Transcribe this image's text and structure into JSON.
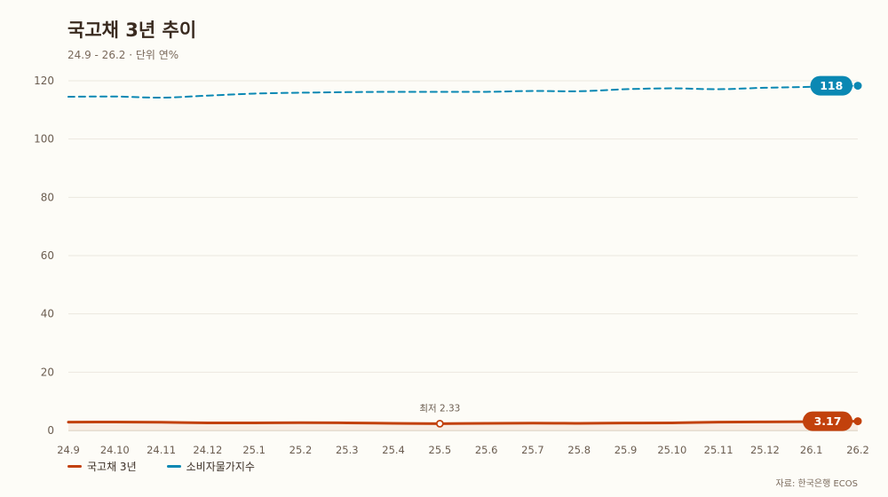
{
  "title": "국고채 3년 추이",
  "subtitle": "24.9 - 26.2 · 단위 연%",
  "source": "자료: 한국은행 ECOS",
  "colors": {
    "background": "#fdfcf7",
    "gridline": "#ece8df",
    "axis_text": "#6b5d50",
    "bond": "#c2410c",
    "cpi": "#0a88b3"
  },
  "chart_data": {
    "type": "line",
    "x": [
      "24.9",
      "24.10",
      "24.11",
      "24.12",
      "25.1",
      "25.2",
      "25.3",
      "25.4",
      "25.5",
      "25.6",
      "25.7",
      "25.8",
      "25.9",
      "25.10",
      "25.11",
      "25.12",
      "26.1",
      "26.2"
    ],
    "ylim": [
      0,
      120
    ],
    "yticks": [
      0,
      20,
      40,
      60,
      80,
      100,
      120
    ],
    "grid": true,
    "series": [
      {
        "name": "국고채 3년",
        "color": "#c2410c",
        "style": "solid",
        "area": true,
        "values": [
          2.85,
          2.9,
          2.8,
          2.6,
          2.6,
          2.65,
          2.6,
          2.45,
          2.33,
          2.45,
          2.5,
          2.45,
          2.55,
          2.6,
          2.85,
          2.95,
          3.0,
          3.17
        ],
        "end_label": "3.17"
      },
      {
        "name": "소비자물가지수",
        "color": "#0a88b3",
        "style": "dashed",
        "area": false,
        "values": [
          114.5,
          114.6,
          114.2,
          114.9,
          115.6,
          115.9,
          116.1,
          116.2,
          116.2,
          116.2,
          116.5,
          116.4,
          117.1,
          117.4,
          117.1,
          117.6,
          117.9,
          118.3
        ],
        "end_label": "118"
      }
    ],
    "annotations": [
      {
        "series": 0,
        "index": 8,
        "text": "최저 2.33"
      }
    ]
  }
}
